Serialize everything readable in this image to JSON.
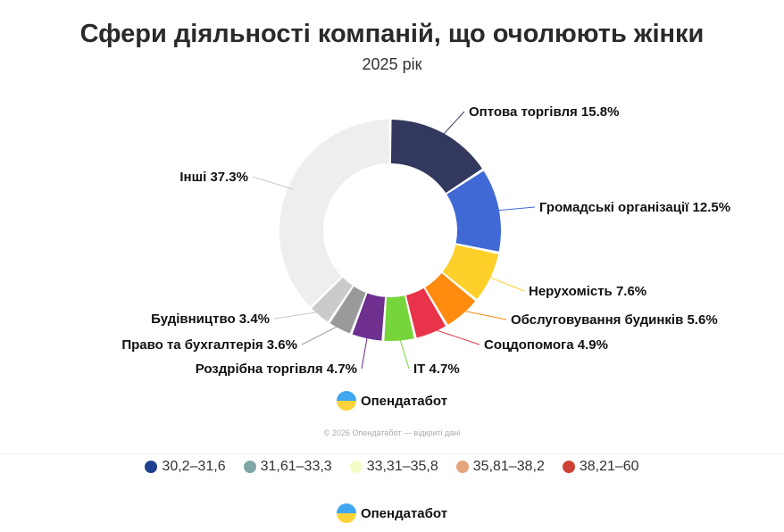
{
  "chart_data": {
    "type": "pie",
    "variant": "donut",
    "title": "Сфери діяльності компаній, що очолюють жінки",
    "subtitle": "2025 рік",
    "slices": [
      {
        "label": "Оптова торгівля",
        "value": 15.8,
        "text": "Оптова торгівля 15.8%",
        "color": "#32385e"
      },
      {
        "label": "Громадські організації",
        "value": 12.5,
        "text": "Громадські організації 12.5%",
        "color": "#4169d6"
      },
      {
        "label": "Нерухомість",
        "value": 7.6,
        "text": "Нерухомість 7.6%",
        "color": "#ffd02a"
      },
      {
        "label": "Обслуговування будинків",
        "value": 5.6,
        "text": "Обслуговування будинків 5.6%",
        "color": "#ff8c0f"
      },
      {
        "label": "Соцдопомога",
        "value": 4.9,
        "text": "Соцдопомога 4.9%",
        "color": "#e8334a"
      },
      {
        "label": "IT",
        "value": 4.7,
        "text": "IT 4.7%",
        "color": "#77d53c"
      },
      {
        "label": "Роздрібна торгівля",
        "value": 4.7,
        "text": "Роздрібна торгівля 4.7%",
        "color": "#6e2f8f"
      },
      {
        "label": "Право та бухгалтерія",
        "value": 3.6,
        "text": "Право та бухгалтерія 3.6%",
        "color": "#9a9a9a"
      },
      {
        "label": "Будівництво",
        "value": 3.4,
        "text": "Будівництво 3.4%",
        "color": "#cbcbcb"
      },
      {
        "label": "Інші",
        "value": 37.3,
        "text": "Інші 37.3%",
        "color": "#eeeeee"
      }
    ]
  },
  "brand": "Опендатабот",
  "copyright": "© 2026 Опендатабот — відкриті дані",
  "legend": [
    {
      "label": "30,2–31,6",
      "color": "#1f3f8f"
    },
    {
      "label": "31,61–33,3",
      "color": "#7ea5a8"
    },
    {
      "label": "33,31–35,8",
      "color": "#f4fbc4"
    },
    {
      "label": "35,81–38,2",
      "color": "#e6a57c"
    },
    {
      "label": "38,21–60",
      "color": "#cf4136"
    }
  ]
}
